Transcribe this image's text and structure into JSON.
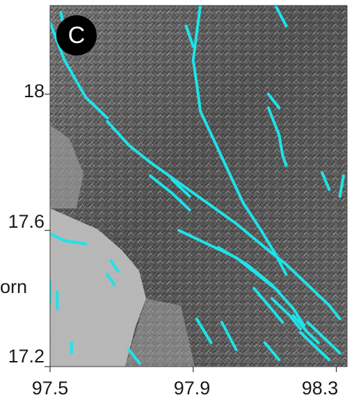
{
  "panel_label": "C",
  "partial_side_text": "orn",
  "map": {
    "lon_range": [
      97.5,
      98.33
    ],
    "lat_range": [
      17.2,
      18.26
    ],
    "basemap": "grayscale shaded relief",
    "fault_color": "#1ee3ea",
    "x_ticks": [
      "97.5",
      "97.9",
      "98.3"
    ],
    "y_ticks": [
      "18",
      "17.6",
      "17.2"
    ],
    "x_tick_values": [
      97.5,
      97.9,
      98.3
    ],
    "y_tick_values": [
      18.0,
      17.6,
      17.2
    ]
  },
  "faults": [
    [
      [
        97.5,
        18.21
      ],
      [
        97.54,
        18.1
      ],
      [
        97.6,
        17.99
      ],
      [
        97.66,
        17.93
      ]
    ],
    [
      [
        97.53,
        18.24
      ],
      [
        97.54,
        18.19
      ]
    ],
    [
      [
        97.66,
        17.92
      ],
      [
        97.72,
        17.85
      ],
      [
        97.78,
        17.8
      ],
      [
        97.86,
        17.74
      ],
      [
        97.94,
        17.68
      ],
      [
        98.02,
        17.62
      ],
      [
        98.1,
        17.55
      ],
      [
        98.16,
        17.5
      ],
      [
        98.22,
        17.44
      ],
      [
        98.28,
        17.38
      ],
      [
        98.31,
        17.34
      ]
    ],
    [
      [
        97.78,
        17.76
      ],
      [
        97.84,
        17.71
      ],
      [
        97.89,
        17.66
      ]
    ],
    [
      [
        97.84,
        17.75
      ],
      [
        97.89,
        17.7
      ]
    ],
    [
      [
        97.86,
        17.6
      ],
      [
        97.94,
        17.56
      ],
      [
        98.02,
        17.52
      ],
      [
        98.08,
        17.47
      ],
      [
        98.14,
        17.42
      ]
    ],
    [
      [
        97.97,
        17.55
      ],
      [
        98.05,
        17.5
      ],
      [
        98.12,
        17.44
      ],
      [
        98.18,
        17.37
      ],
      [
        98.21,
        17.32
      ]
    ],
    [
      [
        98.07,
        17.43
      ],
      [
        98.11,
        17.38
      ],
      [
        98.15,
        17.33
      ]
    ],
    [
      [
        98.12,
        17.4
      ],
      [
        98.17,
        17.35
      ],
      [
        98.2,
        17.31
      ]
    ],
    [
      [
        98.18,
        17.35
      ],
      [
        98.22,
        17.3
      ],
      [
        98.25,
        17.27
      ]
    ],
    [
      [
        98.2,
        17.3
      ],
      [
        98.25,
        17.25
      ],
      [
        98.28,
        17.22
      ]
    ],
    [
      [
        98.22,
        17.33
      ],
      [
        98.27,
        17.28
      ],
      [
        98.31,
        17.24
      ]
    ],
    [
      [
        97.92,
        18.26
      ],
      [
        97.91,
        18.18
      ],
      [
        97.9,
        18.1
      ],
      [
        97.91,
        18.03
      ],
      [
        97.92,
        17.95
      ],
      [
        97.96,
        17.86
      ],
      [
        98.0,
        17.77
      ],
      [
        98.04,
        17.68
      ],
      [
        98.09,
        17.6
      ],
      [
        98.13,
        17.53
      ],
      [
        98.16,
        17.47
      ]
    ],
    [
      [
        97.88,
        18.2
      ],
      [
        97.9,
        18.14
      ]
    ],
    [
      [
        98.13,
        18.26
      ],
      [
        98.16,
        18.2
      ]
    ],
    [
      [
        98.11,
        17.96
      ],
      [
        98.14,
        17.88
      ],
      [
        98.15,
        17.82
      ]
    ],
    [
      [
        98.15,
        17.82
      ],
      [
        98.16,
        17.79
      ]
    ],
    [
      [
        98.26,
        17.77
      ],
      [
        98.28,
        17.72
      ]
    ],
    [
      [
        98.32,
        17.76
      ],
      [
        98.31,
        17.7
      ]
    ],
    [
      [
        98.11,
        18.0
      ],
      [
        98.14,
        17.96
      ]
    ],
    [
      [
        97.5,
        17.59
      ],
      [
        97.54,
        17.57
      ],
      [
        97.6,
        17.56
      ]
    ],
    [
      [
        97.67,
        17.51
      ],
      [
        97.69,
        17.48
      ]
    ],
    [
      [
        97.66,
        17.47
      ],
      [
        97.68,
        17.44
      ]
    ],
    [
      [
        97.5,
        17.39
      ],
      [
        97.5,
        17.45
      ]
    ],
    [
      [
        97.52,
        17.42
      ],
      [
        97.52,
        17.37
      ]
    ],
    [
      [
        97.56,
        17.27
      ],
      [
        97.56,
        17.24
      ]
    ],
    [
      [
        97.91,
        17.34
      ],
      [
        97.95,
        17.27
      ]
    ],
    [
      [
        97.98,
        17.33
      ],
      [
        98.02,
        17.25
      ]
    ],
    [
      [
        97.72,
        17.25
      ],
      [
        97.75,
        17.21
      ]
    ],
    [
      [
        98.1,
        17.27
      ],
      [
        98.14,
        17.22
      ]
    ]
  ]
}
